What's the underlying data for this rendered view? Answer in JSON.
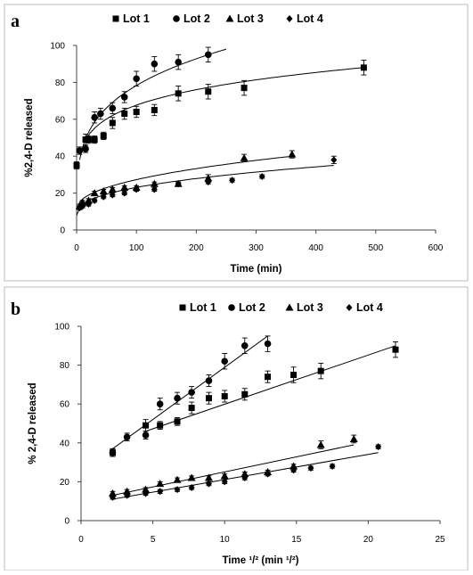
{
  "chart_data": [
    {
      "panel": "a",
      "type": "scatter",
      "xlabel": "Time (min)",
      "ylabel": "%2,4-D released",
      "xlim": [
        0,
        600
      ],
      "ylim": [
        0,
        100
      ],
      "xticks": [
        0,
        100,
        200,
        300,
        400,
        500,
        600
      ],
      "yticks": [
        0,
        20,
        40,
        60,
        80,
        100
      ],
      "grid": false,
      "legend_position": "top",
      "series": [
        {
          "name": "Lot 1",
          "marker": "square",
          "x": [
            0,
            15,
            20,
            30,
            45,
            60,
            80,
            100,
            130,
            170,
            220,
            280,
            480
          ],
          "y": [
            35,
            49,
            49,
            49,
            51,
            58,
            63,
            64,
            65,
            74,
            75,
            77,
            88
          ],
          "err": [
            2,
            3,
            2,
            2,
            2,
            3,
            3,
            3,
            3,
            4,
            4,
            4,
            4
          ],
          "fit_x": [
            15,
            480
          ],
          "fit": "power",
          "fit_b": 0.16
        },
        {
          "name": "Lot 2",
          "marker": "circle",
          "x": [
            5,
            15,
            30,
            40,
            60,
            80,
            100,
            130,
            170,
            220
          ],
          "y": [
            43,
            44,
            61,
            63,
            66,
            72,
            82,
            90,
            91,
            95
          ],
          "err": [
            2,
            2,
            3,
            3,
            3,
            3,
            4,
            4,
            4,
            4
          ],
          "fit_x": [
            5,
            250
          ],
          "fit_y": [
            38,
            98
          ],
          "fit": "power",
          "fit_b": 0.25
        },
        {
          "name": "Lot 3",
          "marker": "triangle",
          "x": [
            5,
            10,
            20,
            30,
            45,
            60,
            80,
            100,
            130,
            170,
            220,
            280,
            360
          ],
          "y": [
            13,
            15,
            16,
            20,
            21,
            22,
            23,
            23,
            25,
            25,
            28,
            39,
            41
          ],
          "err": [
            1,
            1,
            1,
            1,
            1,
            1,
            1,
            1,
            1,
            1,
            2,
            2,
            2
          ],
          "fit_x": [
            0,
            360
          ],
          "fit_y": [
            11,
            40
          ],
          "fit": "power",
          "fit_b": 0.45
        },
        {
          "name": "Lot 4",
          "marker": "diamond",
          "x": [
            5,
            10,
            20,
            30,
            45,
            60,
            80,
            100,
            130,
            170,
            220,
            260,
            310,
            430
          ],
          "y": [
            12,
            13,
            14,
            16,
            18,
            19,
            20,
            22,
            22,
            25,
            26,
            27,
            29,
            38
          ],
          "err": [
            1,
            1,
            1,
            1,
            1,
            1,
            1,
            1,
            1,
            1,
            1,
            1,
            1,
            2
          ],
          "fit_x": [
            0,
            430
          ],
          "fit_y": [
            8,
            35
          ],
          "fit": "power",
          "fit_b": 0.4
        }
      ]
    },
    {
      "panel": "b",
      "type": "scatter",
      "xlabel": "Time ¹/² (min ¹/²)",
      "ylabel": "% 2,4-D released",
      "xlim": [
        0,
        25
      ],
      "ylim": [
        0,
        100
      ],
      "xticks": [
        0,
        5,
        10,
        15,
        20,
        25
      ],
      "yticks": [
        0,
        20,
        40,
        60,
        80,
        100
      ],
      "grid": false,
      "legend_position": "top",
      "series": [
        {
          "name": "Lot 1",
          "marker": "square",
          "x": [
            2.2,
            4.5,
            5.5,
            6.7,
            7.7,
            8.9,
            10.0,
            11.4,
            13.0,
            14.8,
            16.7,
            21.9
          ],
          "y": [
            35,
            49,
            49,
            51,
            58,
            63,
            64,
            65,
            74,
            75,
            77,
            88
          ],
          "err": [
            2,
            3,
            2,
            2,
            3,
            3,
            3,
            3,
            3,
            4,
            4,
            4
          ],
          "fit_x": [
            4.5,
            21.9
          ],
          "fit_y": [
            46,
            90
          ]
        },
        {
          "name": "Lot 2",
          "marker": "circle",
          "x": [
            2.2,
            3.2,
            4.5,
            5.5,
            6.7,
            7.7,
            8.9,
            10.0,
            11.4,
            13.0
          ],
          "y": [
            35,
            43,
            44,
            60,
            63,
            66,
            72,
            82,
            90,
            91
          ],
          "err": [
            2,
            2,
            2,
            3,
            3,
            3,
            3,
            4,
            4,
            4
          ],
          "fit_x": [
            2.2,
            13.0
          ],
          "fit_y": [
            37,
            95
          ]
        },
        {
          "name": "Lot 3",
          "marker": "triangle",
          "x": [
            2.2,
            3.2,
            4.5,
            5.5,
            6.7,
            7.7,
            8.9,
            10.0,
            11.4,
            13.0,
            14.8,
            16.7,
            19.0
          ],
          "y": [
            14,
            15,
            16,
            19,
            21,
            22,
            22,
            23,
            24,
            25,
            28,
            39,
            42
          ],
          "err": [
            1,
            1,
            1,
            1,
            1,
            1,
            1,
            1,
            1,
            1,
            1,
            2,
            2
          ],
          "fit_x": [
            2.2,
            19.0
          ],
          "fit_y": [
            13,
            39
          ]
        },
        {
          "name": "Lot 4",
          "marker": "diamond",
          "x": [
            2.2,
            3.2,
            4.5,
            5.5,
            6.7,
            7.7,
            8.9,
            10.0,
            11.4,
            13.0,
            14.8,
            16.0,
            17.5,
            20.7
          ],
          "y": [
            12,
            13,
            14,
            15,
            16,
            17,
            19,
            20,
            22,
            24,
            26,
            27,
            28,
            38
          ],
          "err": [
            1,
            1,
            1,
            1,
            1,
            1,
            1,
            1,
            1,
            1,
            1,
            1,
            1,
            1
          ],
          "fit_x": [
            2.2,
            20.7
          ],
          "fit_y": [
            11,
            35
          ]
        }
      ]
    }
  ]
}
